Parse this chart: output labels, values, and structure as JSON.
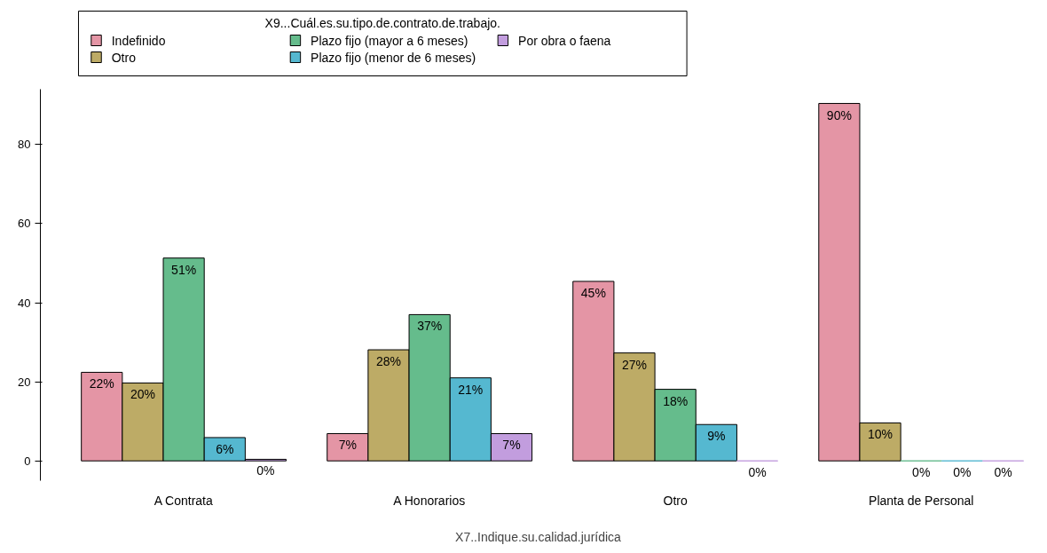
{
  "chart_data": {
    "type": "bar",
    "xlabel": "X7..Indique.su.calidad.jurídica",
    "legend_title": "X9...Cuál.es.su.tipo.de.contrato.de.trabajo.",
    "categories": [
      "A Contrata",
      "A Honorarios",
      "Otro",
      "Planta de Personal"
    ],
    "series": [
      {
        "name": "Indefinido",
        "color": "#e495a5",
        "values": [
          22.4,
          6.9,
          45.4,
          90.4
        ],
        "value_labels": [
          "22%",
          "7%",
          "45%",
          "90%"
        ]
      },
      {
        "name": "Otro",
        "color": "#bdab66",
        "values": [
          19.7,
          28.1,
          27.3,
          9.6
        ],
        "value_labels": [
          "20%",
          "28%",
          "27%",
          "10%"
        ]
      },
      {
        "name": "Plazo fijo (mayor a 6 meses)",
        "color": "#65bc8c",
        "values": [
          51.3,
          37.0,
          18.1,
          0
        ],
        "value_labels": [
          "51%",
          "37%",
          "18%",
          "0%"
        ]
      },
      {
        "name": "Plazo fijo (menor de 6 meses)",
        "color": "#55b8d0",
        "values": [
          5.9,
          21.0,
          9.2,
          0
        ],
        "value_labels": [
          "6%",
          "21%",
          "9%",
          "0%"
        ]
      },
      {
        "name": "Por obra o faena",
        "color": "#c29dde",
        "values": [
          0.4,
          6.9,
          0,
          0
        ],
        "value_labels": [
          "0%",
          "7%",
          "0%",
          "0%"
        ]
      }
    ],
    "ylim": [
      -5,
      94
    ],
    "yticks": [
      0,
      20,
      40,
      60,
      80
    ],
    "grid": false,
    "legend": "top"
  }
}
